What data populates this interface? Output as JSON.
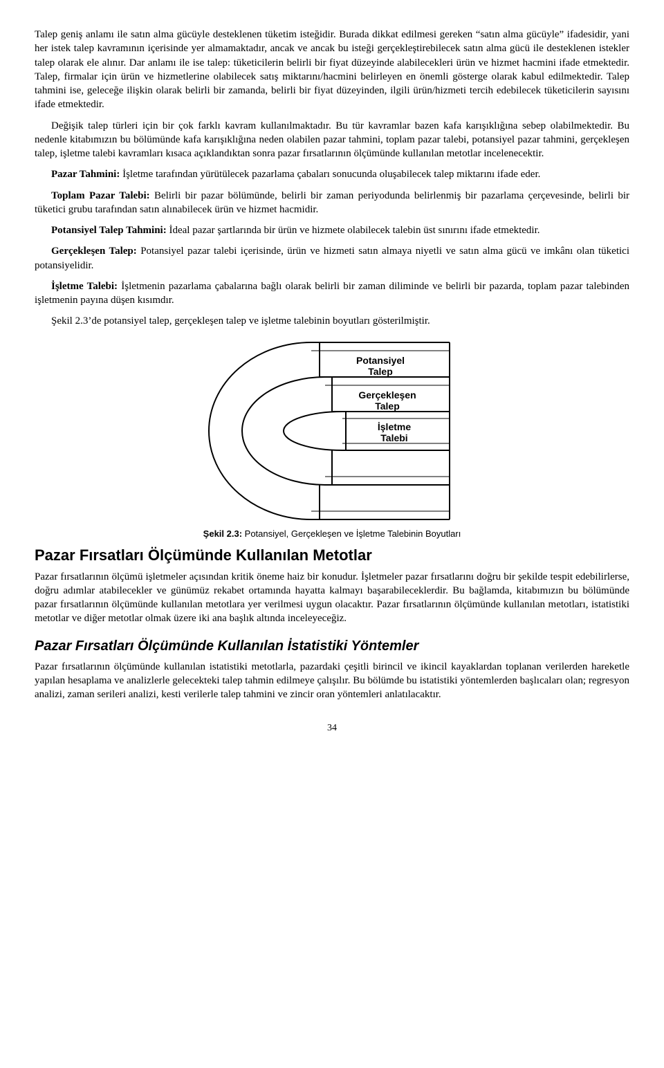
{
  "paragraphs": {
    "p1": "Talep geniş anlamı ile satın alma gücüyle desteklenen tüketim isteğidir. Burada dikkat edilmesi gereken “satın alma gücüyle” ifadesidir, yani her istek talep kavramının içerisinde yer almamaktadır, ancak ve ancak bu isteği gerçekleştirebilecek satın alma gücü ile desteklenen istekler talep olarak ele alınır. Dar anlamı ile ise talep: tüketicilerin belirli bir fiyat düzeyinde alabilecekleri ürün ve hizmet hacmini ifade etmektedir. Talep, firmalar için ürün ve hizmetlerine olabilecek satış miktarını/hacmini belirleyen en önemli gösterge olarak kabul edilmektedir. Talep tahmini ise, geleceğe ilişkin olarak belirli bir zamanda, belirli bir fiyat düzeyinden, ilgili ürün/hizmeti tercih edebilecek tüketicilerin sayısını ifade etmektedir.",
    "p2": "Değişik talep türleri için bir çok farklı kavram kullanılmaktadır. Bu tür kavramlar bazen kafa karışıklığına sebep olabilmektedir. Bu nedenle kitabımızın bu bölümünde kafa karışıklığına neden olabilen pazar tahmini, toplam pazar talebi, potansiyel pazar tahmini, gerçekleşen talep, işletme talebi kavramları kısaca açıklandıktan sonra pazar fırsatlarının ölçümünde kullanılan metotlar incelenecektir.",
    "p3a": "Pazar Tahmini:",
    "p3b": " İşletme tarafından yürütülecek pazarlama çabaları sonucunda oluşabilecek talep miktarını ifade eder.",
    "p4a": "Toplam Pazar Talebi:",
    "p4b": " Belirli bir pazar bölümünde, belirli bir zaman periyodunda belirlenmiş bir pazarlama çerçevesinde, belirli bir tüketici grubu tarafından satın alınabilecek ürün ve hizmet hacmidir.",
    "p5a": "Potansiyel Talep Tahmini:",
    "p5b": " İdeal pazar şartlarında bir ürün ve hizmete olabilecek talebin üst sınırını ifade etmektedir.",
    "p6a": "Gerçekleşen Talep:",
    "p6b": " Potansiyel pazar talebi içerisinde, ürün ve hizmeti satın almaya niyetli ve satın alma gücü ve imkânı olan tüketici potansiyelidir.",
    "p7a": "İşletme Talebi:",
    "p7b": " İşletmenin pazarlama çabalarına bağlı olarak belirli bir zaman diliminde ve belirli bir pazarda, toplam pazar talebinden işletmenin payına düşen kısımdır.",
    "p8": "Şekil 2.3’de potansiyel talep, gerçekleşen talep ve işletme talebinin boyutları gösterilmiştir.",
    "p9": "Pazar fırsatlarının ölçümü işletmeler açısından kritik öneme haiz bir konudur. İşletmeler pazar fırsatlarını doğru bir şekilde tespit edebilirlerse, doğru adımlar atabilecekler ve günümüz rekabet ortamında hayatta kalmayı başarabileceklerdir. Bu bağlamda, kitabımızın bu bölümünde pazar fırsatlarının ölçümünde kullanılan metotlara yer verilmesi uygun olacaktır. Pazar fırsatlarının ölçümünde kullanılan metotları, istatistiki metotlar ve diğer metotlar olmak üzere iki ana başlık altında inceleyeceğiz.",
    "p10": "Pazar fırsatlarının ölçümünde kullanılan istatistiki metotlarla, pazardaki çeşitli birincil ve ikincil kayaklardan toplanan verilerden hareketle yapılan hesaplama ve analizlerle gelecekteki talep tahmin edilmeye çalışılır. Bu bölümde bu istatistiki yöntemlerden başlıcaları olan; regresyon analizi, zaman serileri analizi, kesti verilerle talep tahmini ve zincir oran yöntemleri anlatılacaktır."
  },
  "diagram": {
    "label1": "Potansiyel Talep",
    "label2": "Gerçekleşen Talep",
    "label3": "İşletme Talebi"
  },
  "caption": {
    "lead": "Şekil 2.3:",
    "rest": " Potansiyel, Gerçekleşen ve İşletme Talebinin Boyutları"
  },
  "headings": {
    "h1": "Pazar Fırsatları Ölçümünde Kullanılan Metotlar",
    "h2": "Pazar Fırsatları Ölçümünde Kullanılan İstatistiki Yöntemler"
  },
  "pagenum": "34"
}
